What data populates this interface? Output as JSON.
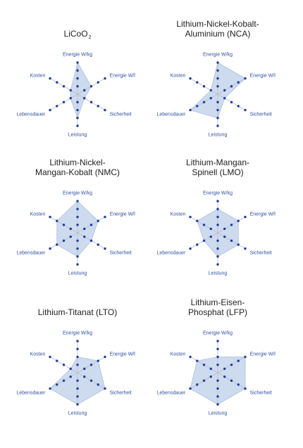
{
  "chart_data": [
    {
      "type": "radar",
      "title": "LiCoO",
      "title_sub": "2",
      "axes": [
        "Energie W/kg",
        "Energie W/l",
        "Sicherheit",
        "Leistung",
        "Lebensdauer",
        "Kosten"
      ],
      "scale_max": 4,
      "values": [
        4,
        2,
        1,
        3,
        1,
        1
      ]
    },
    {
      "type": "radar",
      "title_lines": [
        "Lithium-Nickel-Kobalt-",
        "Aluminium (NCA)"
      ],
      "axes": [
        "Energie W/kg",
        "Energie W/l",
        "Sicherheit",
        "Leistung",
        "Lebensdauer",
        "Kosten"
      ],
      "scale_max": 4,
      "values": [
        4,
        4,
        1,
        3,
        4,
        1
      ]
    },
    {
      "type": "radar",
      "title_lines": [
        "Lithium-Nickel-",
        "Mangan-Kobalt (NMC)"
      ],
      "axes": [
        "Energie W/kg",
        "Energie W/l",
        "Sicherheit",
        "Leistung",
        "Lebensdauer",
        "Kosten"
      ],
      "scale_max": 4,
      "values": [
        4,
        3,
        2,
        3,
        3,
        3
      ]
    },
    {
      "type": "radar",
      "title_lines": [
        "Lithium-Mangan-",
        "Spinell (LMO)"
      ],
      "axes": [
        "Energie W/kg",
        "Energie W/l",
        "Sicherheit",
        "Leistung",
        "Lebensdauer",
        "Kosten"
      ],
      "scale_max": 4,
      "values": [
        3,
        3,
        3,
        3,
        2,
        3
      ]
    },
    {
      "type": "radar",
      "title_lines": [
        "Lithium-Titanat (LTO)"
      ],
      "axes": [
        "Energie W/kg",
        "Energie W/l",
        "Sicherheit",
        "Leistung",
        "Lebensdauer",
        "Kosten"
      ],
      "scale_max": 4,
      "values": [
        2,
        3,
        4,
        4,
        4,
        1
      ]
    },
    {
      "type": "radar",
      "title_lines": [
        "Lithium-Eisen-",
        "Phosphat (LFP)"
      ],
      "axes": [
        "Energie W/kg",
        "Energie W/l",
        "Sicherheit",
        "Leistung",
        "Lebensdauer",
        "Kosten"
      ],
      "scale_max": 4,
      "values": [
        2,
        4,
        4,
        4,
        4,
        3
      ]
    }
  ]
}
